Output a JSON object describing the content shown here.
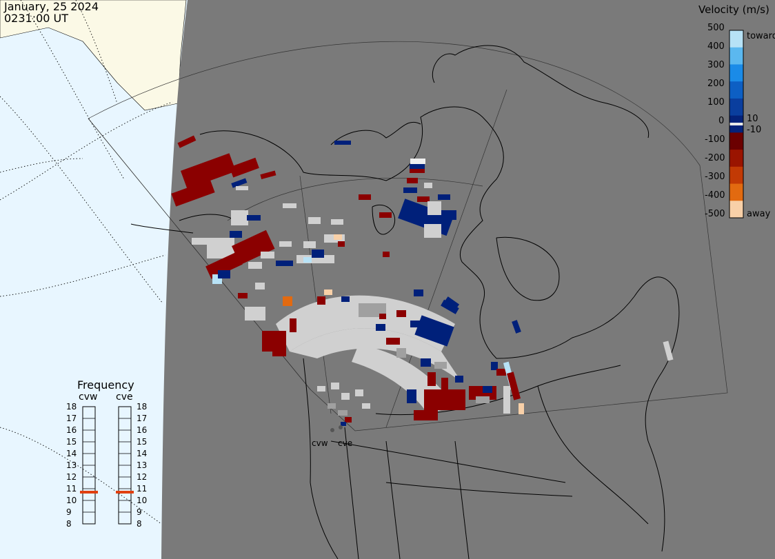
{
  "header": {
    "date": "January, 25 2024",
    "time": "0231:00 UT"
  },
  "velocity_scale": {
    "title": "Velocity (m/s)",
    "ticks": [
      "500",
      "400",
      "300",
      "200",
      "100",
      "0",
      "-100",
      "-200",
      "-300",
      "-400",
      "-500"
    ],
    "inner_labels": [
      "10",
      "-10"
    ],
    "toward_label": "toward",
    "away_label": "away",
    "colors": [
      "#b7e2f6",
      "#5bb8ef",
      "#1a8be8",
      "#0d5fc4",
      "#0a3e9e",
      "#04227a",
      "#6b0000",
      "#9a1400",
      "#c23a05",
      "#e26a10",
      "#f8d0a8"
    ]
  },
  "frequency_panel": {
    "title": "Frequency",
    "radars": [
      {
        "name": "cvw",
        "frequency_mhz": 11
      },
      {
        "name": "cve",
        "frequency_mhz": 11
      }
    ],
    "scale": [
      "18",
      "17",
      "16",
      "15",
      "14",
      "13",
      "12",
      "11",
      "10",
      "9",
      "8"
    ],
    "indicator_color": "#e04010"
  },
  "map": {
    "radar_sites": [
      "cvw",
      "cve"
    ],
    "colors": {
      "land_dark": "#7a7a7a",
      "land_light": "#fbf9e6",
      "ocean": "#e8f6ff",
      "no_data_grey": "#d0d0d0",
      "ground_scatter": "#a0a0a0"
    }
  }
}
